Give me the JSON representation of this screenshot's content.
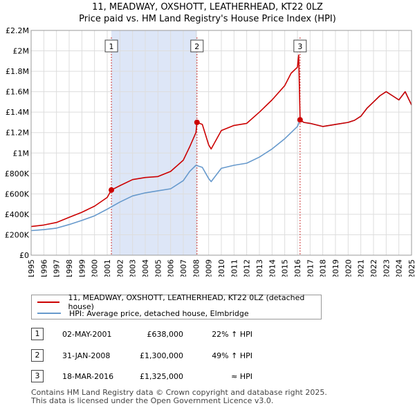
{
  "title_line1": "11, MEADWAY, OXSHOTT, LEATHERHEAD, KT22 0LZ",
  "title_line2": "Price paid vs. HM Land Registry's House Price Index (HPI)",
  "legend": {
    "red_label": "11, MEADWAY, OXSHOTT, LEATHERHEAD, KT22 0LZ (detached house)",
    "blue_label": "HPI: Average price, detached house, Elmbridge"
  },
  "transactions": [
    {
      "num": "1",
      "date": "02-MAY-2001",
      "price": "£638,000",
      "hpi": "22% ↑ HPI"
    },
    {
      "num": "2",
      "date": "31-JAN-2008",
      "price": "£1,300,000",
      "hpi": "49% ↑ HPI"
    },
    {
      "num": "3",
      "date": "18-MAR-2016",
      "price": "£1,325,000",
      "hpi": "≈ HPI"
    }
  ],
  "footer_line1": "Contains HM Land Registry data © Crown copyright and database right 2025.",
  "footer_line2": "This data is licensed under the Open Government Licence v3.0.",
  "colors": {
    "red": "#cc0000",
    "blue": "#6699cc",
    "shade": "#dde6f7",
    "grid": "#dddddd",
    "vline": "#cc3333"
  },
  "chart_data": {
    "type": "line",
    "title": "11, MEADWAY, OXSHOTT, LEATHERHEAD, KT22 0LZ — Price paid vs. HM Land Registry's House Price Index (HPI)",
    "xlabel": "",
    "ylabel": "",
    "xlim": [
      1995,
      2025
    ],
    "ylim": [
      0,
      2200000
    ],
    "y_ticks": [
      0,
      200000,
      400000,
      600000,
      800000,
      1000000,
      1200000,
      1400000,
      1600000,
      1800000,
      2000000,
      2200000
    ],
    "y_tick_labels": [
      "£0",
      "£200K",
      "£400K",
      "£600K",
      "£800K",
      "£1M",
      "£1.2M",
      "£1.4M",
      "£1.6M",
      "£1.8M",
      "£2M",
      "£2.2M"
    ],
    "x_ticks": [
      1995,
      1996,
      1997,
      1998,
      1999,
      2000,
      2001,
      2002,
      2003,
      2004,
      2005,
      2006,
      2007,
      2008,
      2009,
      2010,
      2011,
      2012,
      2013,
      2014,
      2015,
      2016,
      2017,
      2018,
      2019,
      2020,
      2021,
      2022,
      2023,
      2024,
      2025
    ],
    "x_tick_labels": [
      "1995",
      "1996",
      "1997",
      "1998",
      "1999",
      "2000",
      "2001",
      "2002",
      "2003",
      "2004",
      "2005",
      "2006",
      "2007",
      "2008",
      "2009",
      "2010",
      "2011",
      "2012",
      "2013",
      "2014",
      "2015",
      "2016",
      "2017",
      "2018",
      "2019",
      "2020",
      "2021",
      "2022",
      "2023",
      "2024",
      "2025"
    ],
    "grid": true,
    "shaded_ranges": [
      [
        2001.33,
        2008.08
      ]
    ],
    "markers": [
      {
        "label": "1",
        "x": 2001.33,
        "y": 638000
      },
      {
        "label": "2",
        "x": 2008.08,
        "y": 1300000
      },
      {
        "label": "3",
        "x": 2016.21,
        "y": 1325000
      }
    ],
    "series": [
      {
        "name": "11, MEADWAY, OXSHOTT, LEATHERHEAD, KT22 0LZ (detached house)",
        "color": "#cc0000",
        "x": [
          1995.0,
          1996.0,
          1997.0,
          1998.0,
          1999.0,
          2000.0,
          2001.0,
          2001.33,
          2002.0,
          2003.0,
          2004.0,
          2005.0,
          2006.0,
          2007.0,
          2007.5,
          2008.0,
          2008.08,
          2008.5,
          2009.0,
          2009.2,
          2010.0,
          2011.0,
          2012.0,
          2013.0,
          2014.0,
          2015.0,
          2015.5,
          2016.0,
          2016.1,
          2016.21,
          2016.5,
          2017.0,
          2018.0,
          2019.0,
          2020.0,
          2020.5,
          2021.0,
          2021.5,
          2022.0,
          2022.5,
          2023.0,
          2023.5,
          2024.0,
          2024.5,
          2025.0
        ],
        "y": [
          280000,
          295000,
          320000,
          370000,
          420000,
          480000,
          565000,
          638000,
          680000,
          740000,
          760000,
          770000,
          820000,
          930000,
          1060000,
          1200000,
          1300000,
          1280000,
          1080000,
          1040000,
          1220000,
          1270000,
          1290000,
          1400000,
          1520000,
          1660000,
          1780000,
          1840000,
          1960000,
          1325000,
          1300000,
          1290000,
          1260000,
          1280000,
          1300000,
          1320000,
          1360000,
          1440000,
          1500000,
          1560000,
          1600000,
          1560000,
          1520000,
          1600000,
          1470000
        ]
      },
      {
        "name": "HPI: Average price, detached house, Elmbridge",
        "color": "#6699cc",
        "x": [
          1995.0,
          1996.0,
          1997.0,
          1998.0,
          1999.0,
          2000.0,
          2001.0,
          2002.0,
          2003.0,
          2004.0,
          2005.0,
          2006.0,
          2007.0,
          2007.5,
          2008.0,
          2008.5,
          2009.0,
          2009.2,
          2010.0,
          2011.0,
          2012.0,
          2013.0,
          2014.0,
          2015.0,
          2016.0,
          2016.21,
          2016.5,
          2017.0,
          2018.0,
          2019.0,
          2020.0,
          2020.5,
          2021.0,
          2021.5,
          2022.0,
          2022.5,
          2023.0,
          2023.5,
          2024.0,
          2024.5,
          2025.0
        ],
        "y": [
          240000,
          250000,
          265000,
          300000,
          340000,
          385000,
          450000,
          520000,
          580000,
          610000,
          630000,
          650000,
          730000,
          820000,
          880000,
          860000,
          750000,
          720000,
          850000,
          880000,
          900000,
          960000,
          1040000,
          1140000,
          1260000,
          1325000,
          1300000,
          1290000,
          1260000,
          1280000,
          1300000,
          1320000,
          1360000,
          1440000,
          1500000,
          1560000,
          1600000,
          1560000,
          1520000,
          1600000,
          1470000
        ]
      }
    ]
  }
}
